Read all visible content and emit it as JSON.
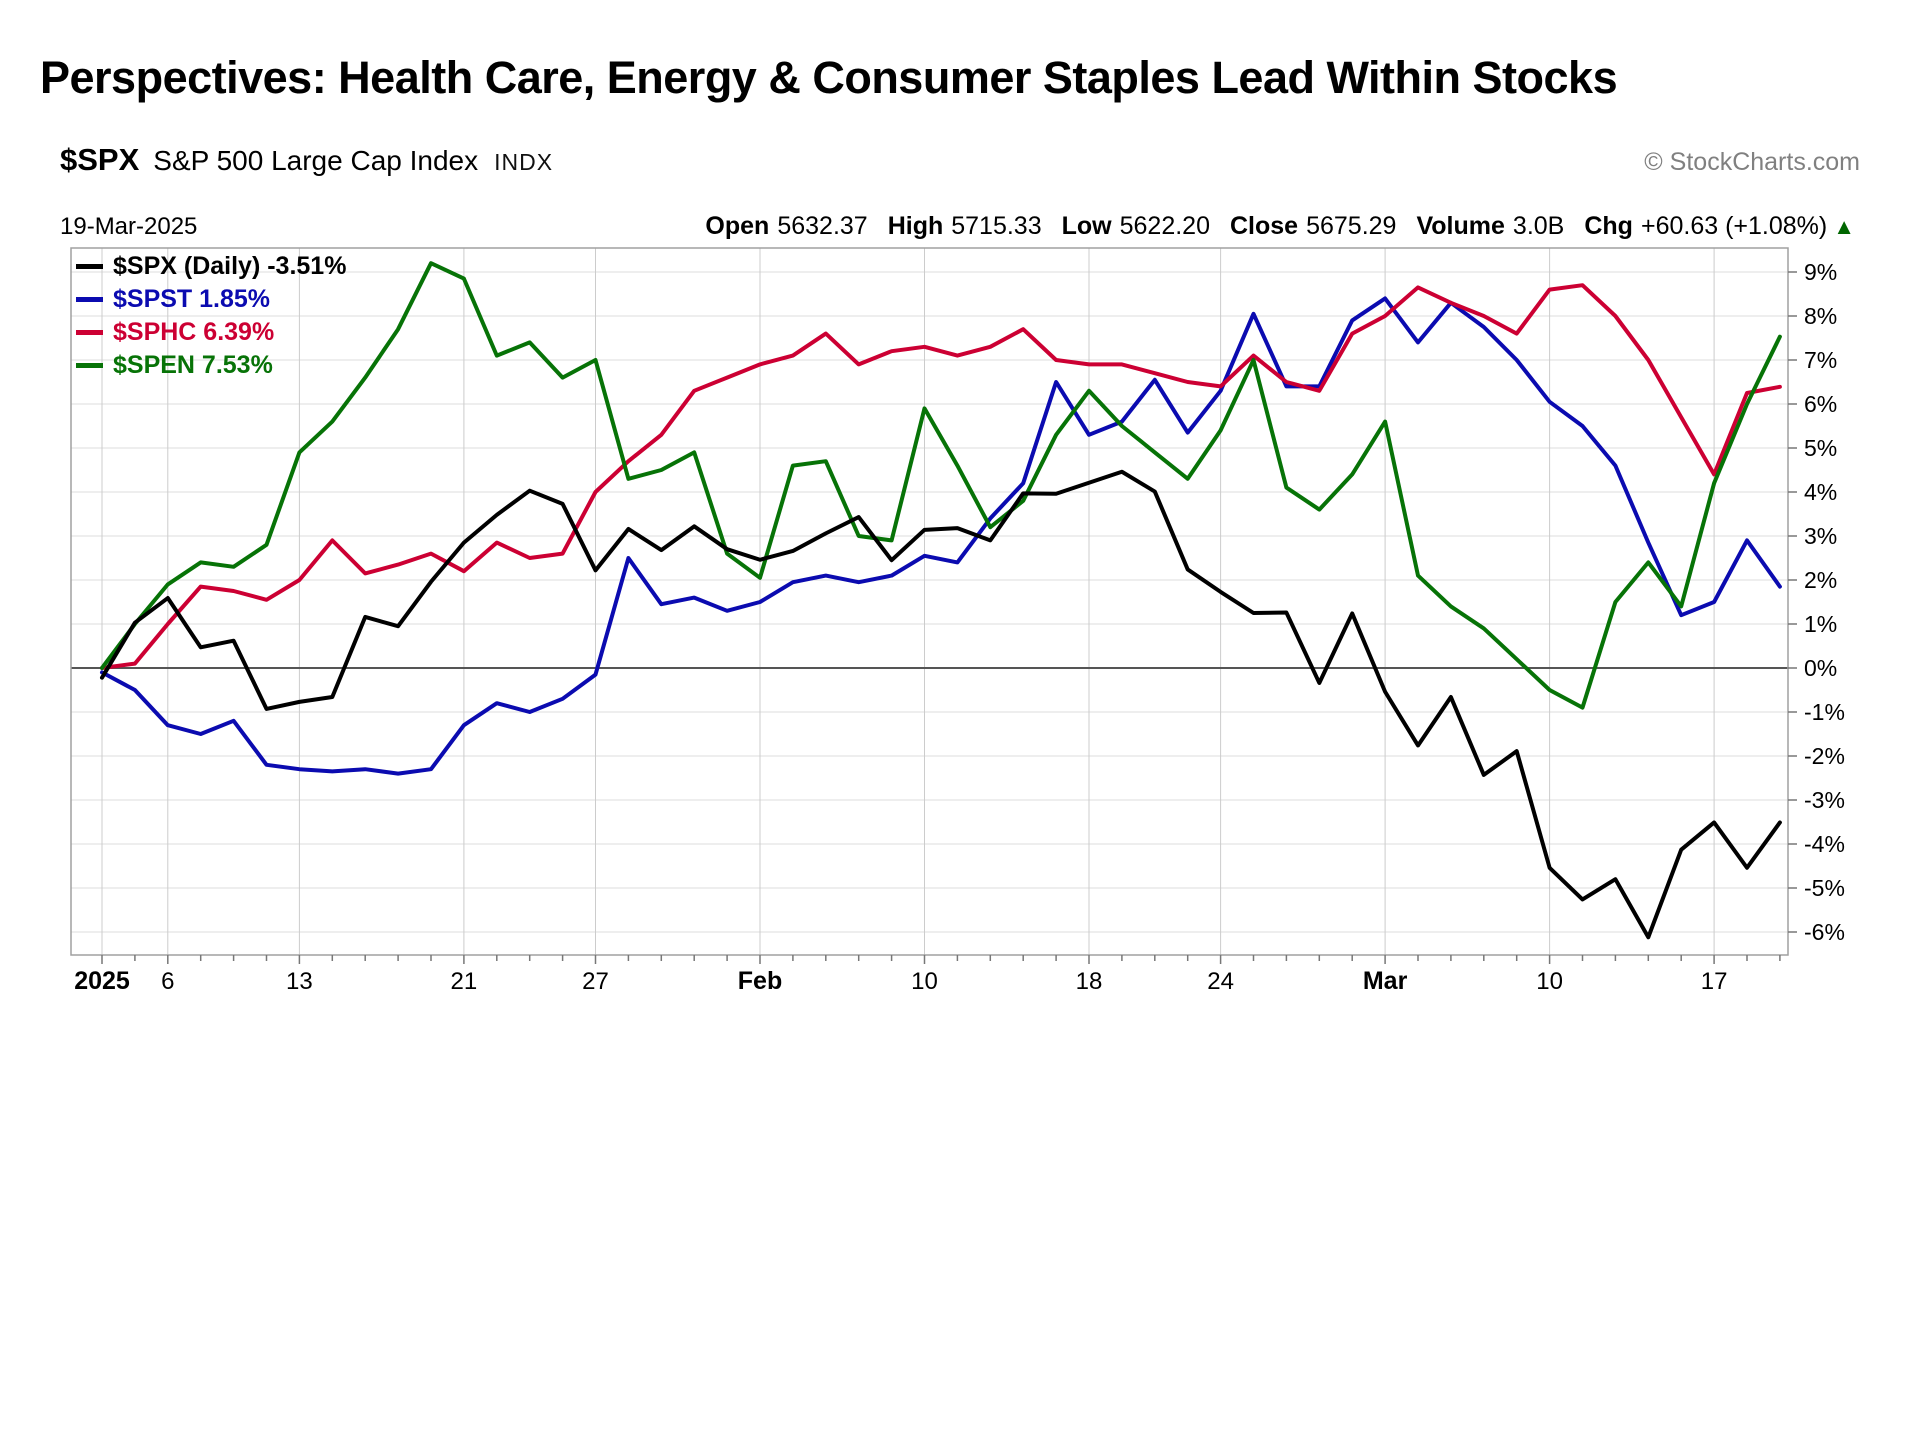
{
  "page": {
    "title": "Perspectives: Health Care, Energy & Consumer Staples Lead Within Stocks"
  },
  "chart": {
    "symbol": "$SPX",
    "name": "S&P 500 Large Cap Index",
    "exchange": "INDX",
    "date": "19-Mar-2025",
    "watermark": "© StockCharts.com",
    "quote": {
      "open_label": "Open",
      "open": "5632.37",
      "high_label": "High",
      "high": "5715.33",
      "low_label": "Low",
      "low": "5622.20",
      "close_label": "Close",
      "close": "5675.29",
      "volume_label": "Volume",
      "volume": "3.0B",
      "chg_label": "Chg",
      "chg": "+60.63 (+1.08%)",
      "chg_arrow": "▲",
      "chg_arrow_color": "#006600"
    },
    "legend": [
      {
        "label": "$SPX (Daily) -3.51%",
        "color": "#000000"
      },
      {
        "label": "$SPST 1.85%",
        "color": "#0b0bb0"
      },
      {
        "label": "$SPHC 6.39%",
        "color": "#cc0033"
      },
      {
        "label": "$SPEN 7.53%",
        "color": "#077307"
      }
    ],
    "colors": {
      "grid_h": "#dddddd",
      "grid_v": "#cccccc",
      "zero_line": "#555555",
      "border": "#a0a0a0",
      "tick": "#777777"
    }
  },
  "chart_data": {
    "type": "line",
    "title": "$SPX vs sector indices, percent change since 31-Dec-2024",
    "x": [
      "Jan 2",
      "Jan 3",
      "Jan 6",
      "Jan 7",
      "Jan 8",
      "Jan 10",
      "Jan 13",
      "Jan 14",
      "Jan 15",
      "Jan 16",
      "Jan 17",
      "Jan 21",
      "Jan 22",
      "Jan 23",
      "Jan 24",
      "Jan 27",
      "Jan 28",
      "Jan 29",
      "Jan 30",
      "Jan 31",
      "Feb 3",
      "Feb 4",
      "Feb 5",
      "Feb 6",
      "Feb 7",
      "Feb 10",
      "Feb 11",
      "Feb 12",
      "Feb 13",
      "Feb 14",
      "Feb 18",
      "Feb 19",
      "Feb 20",
      "Feb 21",
      "Feb 24",
      "Feb 25",
      "Feb 26",
      "Feb 27",
      "Feb 28",
      "Mar 3",
      "Mar 4",
      "Mar 5",
      "Mar 6",
      "Mar 7",
      "Mar 10",
      "Mar 11",
      "Mar 12",
      "Mar 13",
      "Mar 14",
      "Mar 17",
      "Mar 18",
      "Mar 19"
    ],
    "series": [
      {
        "name": "$SPST",
        "color": "#0b0bb0",
        "values": [
          -0.1,
          -0.5,
          -1.3,
          -1.5,
          -1.2,
          -2.2,
          -2.3,
          -2.35,
          -2.3,
          -2.4,
          -2.3,
          -1.3,
          -0.8,
          -1.0,
          -0.7,
          -0.15,
          2.5,
          1.45,
          1.6,
          1.3,
          1.5,
          1.95,
          2.1,
          1.95,
          2.1,
          2.55,
          2.4,
          3.4,
          4.2,
          6.5,
          5.3,
          5.6,
          6.55,
          5.35,
          6.3,
          8.05,
          6.4,
          6.4,
          7.9,
          8.4,
          7.4,
          8.3,
          7.75,
          7.0,
          6.05,
          5.5,
          4.6,
          2.85,
          1.2,
          1.5,
          2.9,
          1.85
        ]
      },
      {
        "name": "$SPHC",
        "color": "#cc0033",
        "values": [
          0.0,
          0.1,
          1.0,
          1.85,
          1.75,
          1.55,
          2.0,
          2.9,
          2.15,
          2.35,
          2.6,
          2.2,
          2.85,
          2.5,
          2.6,
          4.0,
          4.7,
          5.3,
          6.3,
          6.6,
          6.9,
          7.1,
          7.6,
          6.9,
          7.2,
          7.3,
          7.1,
          7.3,
          7.7,
          7.0,
          6.9,
          6.9,
          6.7,
          6.5,
          6.4,
          7.1,
          6.5,
          6.3,
          7.6,
          8.0,
          8.65,
          8.3,
          8.0,
          7.6,
          8.6,
          8.7,
          8.0,
          7.0,
          5.7,
          4.4,
          6.25,
          6.39
        ]
      },
      {
        "name": "$SPEN",
        "color": "#077307",
        "values": [
          0.0,
          1.0,
          1.9,
          2.4,
          2.3,
          2.8,
          4.9,
          5.6,
          6.6,
          7.7,
          9.2,
          8.85,
          7.1,
          7.4,
          6.6,
          7.0,
          4.3,
          4.5,
          4.9,
          2.6,
          2.05,
          4.6,
          4.7,
          3.0,
          2.9,
          5.9,
          4.6,
          3.2,
          3.8,
          5.3,
          6.3,
          5.5,
          4.9,
          4.3,
          5.4,
          7.0,
          4.1,
          3.6,
          4.4,
          5.6,
          2.1,
          1.4,
          0.9,
          0.2,
          -0.5,
          -0.9,
          1.5,
          2.4,
          1.4,
          4.2,
          6.0,
          7.53
        ]
      },
      {
        "name": "$SPX",
        "color": "#000000",
        "values": [
          -0.22,
          1.03,
          1.59,
          0.47,
          0.62,
          -0.93,
          -0.77,
          -0.66,
          1.16,
          0.95,
          1.96,
          2.85,
          3.48,
          4.03,
          3.73,
          2.22,
          3.16,
          2.68,
          3.22,
          2.7,
          2.46,
          2.66,
          3.06,
          3.43,
          2.45,
          3.14,
          3.18,
          2.9,
          3.97,
          3.96,
          4.21,
          4.46,
          4.01,
          2.24,
          1.73,
          1.25,
          1.26,
          -0.34,
          1.24,
          -0.54,
          -1.76,
          -0.66,
          -2.43,
          -1.89,
          -4.54,
          -5.26,
          -4.8,
          -6.12,
          -4.13,
          -3.51,
          -4.54,
          -3.51
        ]
      }
    ],
    "ylim": [
      -6.5,
      9.5
    ],
    "yticks": [
      {
        "value": 9,
        "label": "9%"
      },
      {
        "value": 8,
        "label": "8%"
      },
      {
        "value": 7,
        "label": "7%"
      },
      {
        "value": 6,
        "label": "6%"
      },
      {
        "value": 5,
        "label": "5%"
      },
      {
        "value": 4,
        "label": "4%"
      },
      {
        "value": 3,
        "label": "3%"
      },
      {
        "value": 2,
        "label": "2%"
      },
      {
        "value": 1,
        "label": "1%"
      },
      {
        "value": 0,
        "label": "0%"
      },
      {
        "value": -1,
        "label": "-1%"
      },
      {
        "value": -2,
        "label": "-2%"
      },
      {
        "value": -3,
        "label": "-3%"
      },
      {
        "value": -4,
        "label": "-4%"
      },
      {
        "value": -5,
        "label": "-5%"
      },
      {
        "value": -6,
        "label": "-6%"
      }
    ],
    "xticks": [
      {
        "label": "2025",
        "index": 0,
        "bold": true
      },
      {
        "label": "6",
        "index": 2,
        "bold": false
      },
      {
        "label": "13",
        "index": 6,
        "bold": false
      },
      {
        "label": "21",
        "index": 11,
        "bold": false
      },
      {
        "label": "27",
        "index": 15,
        "bold": false
      },
      {
        "label": "Feb",
        "index": 20,
        "bold": true
      },
      {
        "label": "10",
        "index": 25,
        "bold": false
      },
      {
        "label": "18",
        "index": 30,
        "bold": false
      },
      {
        "label": "24",
        "index": 34,
        "bold": false
      },
      {
        "label": "Mar",
        "index": 39,
        "bold": true
      },
      {
        "label": "10",
        "index": 44,
        "bold": false
      },
      {
        "label": "17",
        "index": 49,
        "bold": false
      }
    ],
    "grid": true,
    "legend_position": "top-left"
  }
}
